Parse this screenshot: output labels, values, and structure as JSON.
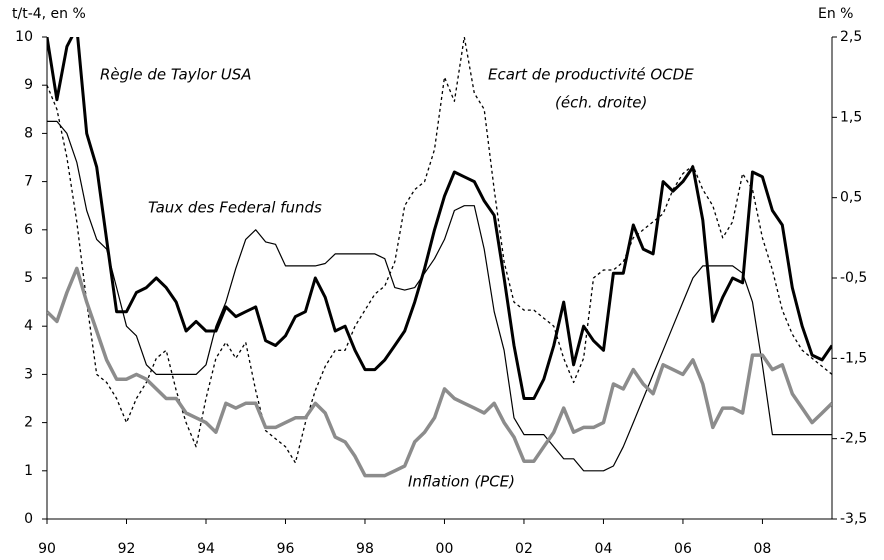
{
  "chart_data": {
    "type": "line",
    "annotations": [
      "t/t-4, en %",
      "En %",
      "(éch. droite)"
    ],
    "categories": [
      "90",
      null,
      null,
      null,
      null,
      null,
      null,
      null,
      "92",
      null,
      null,
      null,
      null,
      null,
      null,
      null,
      "94",
      null,
      null,
      null,
      null,
      null,
      null,
      null,
      "96",
      null,
      null,
      null,
      null,
      null,
      null,
      null,
      "98",
      null,
      null,
      null,
      null,
      null,
      null,
      null,
      "00",
      null,
      null,
      null,
      null,
      null,
      null,
      null,
      "02",
      null,
      null,
      null,
      null,
      null,
      null,
      null,
      "04",
      null,
      null,
      null,
      null,
      null,
      null,
      null,
      "06",
      null,
      null,
      null,
      null,
      null,
      null,
      null,
      "08",
      null,
      null,
      null,
      null,
      null,
      null,
      null
    ],
    "ylim": [
      0,
      10
    ],
    "yticks": [
      0,
      1,
      2,
      3,
      4,
      5,
      6,
      7,
      8,
      9,
      10
    ],
    "y2lim": [
      -3.5,
      2.5
    ],
    "y2ticks": [
      {
        "value": 2.5,
        "label": "2,5"
      },
      {
        "value": 1.5,
        "label": "1,5"
      },
      {
        "value": 0.5,
        "label": "0,5"
      },
      {
        "value": -0.5,
        "label": "-0,5"
      },
      {
        "value": -1.5,
        "label": "-1,5"
      },
      {
        "value": -2.5,
        "label": "-2,5"
      },
      {
        "value": -3.5,
        "label": "-3,5"
      }
    ],
    "series": [
      {
        "name": "Règle de Taylor USA",
        "color": "#000000",
        "values": [
          10.0,
          8.7,
          9.8,
          10.2,
          8.0,
          7.3,
          5.8,
          4.3,
          4.3,
          4.7,
          4.8,
          5.0,
          4.8,
          4.5,
          3.9,
          4.1,
          3.9,
          3.9,
          4.4,
          4.2,
          4.3,
          4.4,
          3.7,
          3.6,
          3.8,
          4.2,
          4.3,
          5.0,
          4.6,
          3.9,
          4.0,
          3.5,
          3.1,
          3.1,
          3.3,
          3.6,
          3.9,
          4.5,
          5.2,
          6.0,
          6.7,
          7.2,
          7.1,
          7.0,
          6.6,
          6.3,
          5.0,
          3.6,
          2.5,
          2.5,
          2.9,
          3.6,
          4.5,
          3.2,
          4.0,
          3.7,
          3.5,
          5.1,
          5.1,
          6.1,
          5.6,
          5.5,
          7.0,
          6.8,
          7.0,
          7.3,
          6.2,
          4.1,
          4.6,
          5.0,
          4.9,
          7.2,
          7.1,
          6.4,
          6.1,
          4.8,
          4.0,
          3.4,
          3.3,
          3.6
        ]
      },
      {
        "name": "Taux des Federal funds",
        "color": "#000000",
        "values": [
          8.25,
          8.25,
          8.0,
          7.4,
          6.4,
          5.8,
          5.6,
          4.8,
          4.0,
          3.8,
          3.2,
          3.0,
          3.0,
          3.0,
          3.0,
          3.0,
          3.2,
          4.0,
          4.5,
          5.2,
          5.8,
          6.0,
          5.75,
          5.7,
          5.25,
          5.25,
          5.25,
          5.25,
          5.3,
          5.5,
          5.5,
          5.5,
          5.5,
          5.5,
          5.4,
          4.8,
          4.75,
          4.8,
          5.1,
          5.4,
          5.8,
          6.4,
          6.5,
          6.5,
          5.6,
          4.3,
          3.5,
          2.1,
          1.75,
          1.75,
          1.75,
          1.5,
          1.25,
          1.25,
          1.0,
          1.0,
          1.0,
          1.1,
          1.5,
          2.0,
          2.5,
          3.0,
          3.5,
          4.0,
          4.5,
          5.0,
          5.25,
          5.25,
          5.25,
          5.25,
          5.1,
          4.5,
          3.2,
          1.75,
          1.75,
          1.75,
          1.75,
          1.75,
          1.75,
          1.75
        ]
      },
      {
        "name": "Inflation (PCE)",
        "color": "#8c8c8c",
        "values": [
          4.3,
          4.1,
          4.7,
          5.2,
          4.5,
          3.9,
          3.3,
          2.9,
          2.9,
          3.0,
          2.9,
          2.7,
          2.5,
          2.5,
          2.2,
          2.1,
          2.0,
          1.8,
          2.4,
          2.3,
          2.4,
          2.4,
          1.9,
          1.9,
          2.0,
          2.1,
          2.1,
          2.4,
          2.2,
          1.7,
          1.6,
          1.3,
          0.9,
          0.9,
          0.9,
          1.0,
          1.1,
          1.6,
          1.8,
          2.1,
          2.7,
          2.5,
          2.4,
          2.3,
          2.2,
          2.4,
          2.0,
          1.7,
          1.2,
          1.2,
          1.5,
          1.8,
          2.3,
          1.8,
          1.9,
          1.9,
          2.0,
          2.8,
          2.7,
          3.1,
          2.8,
          2.6,
          3.2,
          3.1,
          3.0,
          3.3,
          2.8,
          1.9,
          2.3,
          2.3,
          2.2,
          3.4,
          3.4,
          3.1,
          3.2,
          2.6,
          2.3,
          2.0,
          2.2,
          2.4
        ]
      },
      {
        "name": "Ecart de productivité OCDE",
        "color": "#000000",
        "axis": "y2",
        "values": [
          1.9,
          1.6,
          1.0,
          0.2,
          -0.8,
          -1.7,
          -1.8,
          -2.0,
          -2.3,
          -2.0,
          -1.8,
          -1.5,
          -1.4,
          -1.9,
          -2.3,
          -2.6,
          -2.0,
          -1.5,
          -1.3,
          -1.5,
          -1.3,
          -1.9,
          -2.4,
          -2.5,
          -2.6,
          -2.8,
          -2.3,
          -1.9,
          -1.6,
          -1.4,
          -1.4,
          -1.1,
          -0.9,
          -0.7,
          -0.6,
          -0.3,
          0.4,
          0.6,
          0.7,
          1.1,
          2.0,
          1.7,
          2.5,
          1.8,
          1.6,
          0.6,
          -0.3,
          -0.8,
          -0.9,
          -0.9,
          -1.0,
          -1.1,
          -1.5,
          -1.8,
          -1.5,
          -0.5,
          -0.4,
          -0.4,
          -0.3,
          0.0,
          0.1,
          0.2,
          0.3,
          0.6,
          0.8,
          0.9,
          0.6,
          0.4,
          0.0,
          0.2,
          0.8,
          0.6,
          0.0,
          -0.4,
          -0.9,
          -1.2,
          -1.4,
          -1.5,
          -1.6,
          -1.7
        ]
      }
    ]
  }
}
